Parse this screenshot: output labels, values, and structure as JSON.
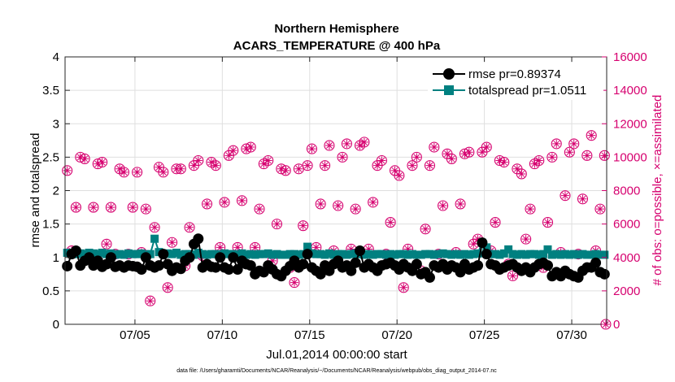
{
  "chart_data": {
    "type": "scatter",
    "title": "Northern Hemisphere",
    "subtitle": "ACARS_TEMPERATURE @ 400 hPa",
    "xlabel": "Jul.01,2014 00:00:00 start",
    "ylabel_left": "rmse and totalspread",
    "ylabel_right": "# of obs: o=possible, ×=assimilated",
    "footnote": "data file: /Users/gharamti/Documents/NCAR/Reanalysis/~/Documents/NCAR/Reanalysis/webpub/obs_diag_output_2014-07.nc",
    "xlim": [
      1.0,
      32.0
    ],
    "ylim_left": [
      0,
      4
    ],
    "ylim_right": [
      0,
      16000
    ],
    "x_ticks": [
      5,
      10,
      15,
      20,
      25,
      30
    ],
    "x_tick_labels": [
      "07/05",
      "07/10",
      "07/15",
      "07/20",
      "07/25",
      "07/30"
    ],
    "y_left_ticks": [
      "0",
      "0.5",
      "1",
      "1.5",
      "2",
      "2.5",
      "3",
      "3.5",
      "4"
    ],
    "y_right_ticks": [
      "0",
      "2000",
      "4000",
      "6000",
      "8000",
      "10000",
      "12000",
      "14000",
      "16000"
    ],
    "grid": true,
    "legend_position": "top-right",
    "colors": {
      "rmse": "#000000",
      "totalspread": "#008080",
      "obs": "#d6006f"
    },
    "series": [
      {
        "name": "rmse",
        "label": "rmse pr=0.89374",
        "axis": "left",
        "x": [
          1.125,
          1.375,
          1.625,
          1.875,
          2.125,
          2.375,
          2.625,
          2.875,
          3.125,
          3.375,
          3.625,
          3.875,
          4.125,
          4.375,
          4.625,
          4.875,
          5.125,
          5.375,
          5.625,
          5.875,
          6.125,
          6.375,
          6.625,
          6.875,
          7.125,
          7.375,
          7.625,
          7.875,
          8.125,
          8.375,
          8.625,
          8.875,
          9.125,
          9.375,
          9.625,
          9.875,
          10.125,
          10.375,
          10.625,
          10.875,
          11.125,
          11.375,
          11.625,
          11.875,
          12.125,
          12.375,
          12.625,
          12.875,
          13.125,
          13.375,
          13.625,
          13.875,
          14.125,
          14.375,
          14.625,
          14.875,
          15.125,
          15.375,
          15.625,
          15.875,
          16.125,
          16.375,
          16.625,
          16.875,
          17.125,
          17.375,
          17.625,
          17.875,
          18.125,
          18.375,
          18.625,
          18.875,
          19.125,
          19.375,
          19.625,
          19.875,
          20.125,
          20.375,
          20.625,
          20.875,
          21.125,
          21.375,
          21.625,
          21.875,
          22.125,
          22.375,
          22.625,
          22.875,
          23.125,
          23.375,
          23.625,
          23.875,
          24.125,
          24.375,
          24.625,
          24.875,
          25.125,
          25.375,
          25.625,
          25.875,
          26.125,
          26.375,
          26.625,
          26.875,
          27.125,
          27.375,
          27.625,
          27.875,
          28.125,
          28.375,
          28.625,
          28.875,
          29.125,
          29.375,
          29.625,
          29.875,
          30.125,
          30.375,
          30.625,
          30.875,
          31.125,
          31.375,
          31.625,
          31.875
        ],
        "values": [
          0.87,
          1.05,
          1.1,
          0.88,
          0.95,
          1.0,
          0.88,
          0.95,
          0.86,
          0.9,
          1.0,
          0.86,
          0.88,
          0.85,
          0.88,
          0.87,
          0.86,
          0.82,
          1.0,
          0.88,
          0.85,
          0.88,
          1.05,
          0.9,
          0.8,
          0.85,
          0.83,
          0.95,
          1.0,
          1.2,
          1.28,
          0.85,
          0.9,
          0.86,
          0.85,
          1.0,
          0.85,
          0.82,
          1.0,
          0.82,
          0.95,
          0.9,
          0.88,
          0.75,
          0.8,
          0.78,
          0.88,
          0.82,
          0.75,
          0.72,
          0.8,
          0.87,
          0.95,
          0.85,
          0.9,
          1.05,
          0.85,
          0.8,
          0.75,
          0.88,
          0.8,
          0.9,
          0.95,
          0.85,
          0.88,
          0.8,
          0.92,
          1.1,
          0.85,
          0.9,
          0.85,
          0.8,
          0.88,
          0.9,
          0.92,
          0.88,
          0.82,
          0.9,
          0.85,
          0.8,
          0.9,
          0.75,
          0.78,
          0.7,
          0.88,
          0.85,
          0.9,
          0.82,
          0.88,
          0.85,
          0.78,
          0.9,
          0.82,
          0.85,
          0.88,
          1.22,
          1.05,
          0.9,
          0.88,
          0.82,
          0.85,
          0.88,
          0.9,
          0.85,
          0.8,
          0.85,
          0.78,
          0.85,
          0.9,
          0.92,
          0.88,
          0.72,
          0.78,
          0.72,
          0.8,
          0.75,
          0.72,
          0.7,
          0.8,
          0.85,
          0.85,
          0.92,
          0.78,
          0.75
        ]
      },
      {
        "name": "totalspread",
        "label": "totalspread pr=1.0511",
        "axis": "left",
        "x": [
          1.125,
          1.375,
          1.625,
          1.875,
          2.125,
          2.375,
          2.625,
          2.875,
          3.125,
          3.375,
          3.625,
          3.875,
          4.125,
          4.375,
          4.625,
          4.875,
          5.125,
          5.375,
          5.625,
          5.875,
          6.125,
          6.375,
          6.625,
          6.875,
          7.125,
          7.375,
          7.625,
          7.875,
          8.125,
          8.375,
          8.625,
          8.875,
          9.125,
          9.375,
          9.625,
          9.875,
          10.125,
          10.375,
          10.625,
          10.875,
          11.125,
          11.375,
          11.625,
          11.875,
          12.125,
          12.375,
          12.625,
          12.875,
          13.125,
          13.375,
          13.625,
          13.875,
          14.125,
          14.375,
          14.625,
          14.875,
          15.125,
          15.375,
          15.625,
          15.875,
          16.125,
          16.375,
          16.625,
          16.875,
          17.125,
          17.375,
          17.625,
          17.875,
          18.125,
          18.375,
          18.625,
          18.875,
          19.125,
          19.375,
          19.625,
          19.875,
          20.125,
          20.375,
          20.625,
          20.875,
          21.125,
          21.375,
          21.625,
          21.875,
          22.125,
          22.375,
          22.625,
          22.875,
          23.125,
          23.375,
          23.625,
          23.875,
          24.125,
          24.375,
          24.625,
          24.875,
          25.125,
          25.375,
          25.625,
          25.875,
          26.125,
          26.375,
          26.625,
          26.875,
          27.125,
          27.375,
          27.625,
          27.875,
          28.125,
          28.375,
          28.625,
          28.875,
          29.125,
          29.375,
          29.625,
          29.875,
          30.125,
          30.375,
          30.625,
          30.875,
          31.125,
          31.375,
          31.625,
          31.875
        ],
        "values": [
          1.07,
          1.05,
          1.05,
          1.06,
          1.05,
          1.07,
          1.06,
          1.05,
          1.07,
          1.05,
          1.06,
          1.04,
          1.05,
          1.04,
          1.06,
          1.05,
          1.05,
          1.06,
          1.04,
          1.05,
          1.28,
          1.08,
          1.05,
          1.06,
          1.05,
          1.07,
          1.04,
          1.05,
          1.05,
          1.04,
          1.07,
          1.05,
          1.04,
          1.05,
          1.05,
          1.04,
          1.06,
          1.05,
          1.05,
          1.04,
          1.06,
          1.04,
          1.05,
          1.04,
          1.05,
          1.05,
          1.06,
          1.04,
          1.05,
          1.04,
          1.04,
          1.05,
          1.05,
          1.04,
          1.05,
          1.16,
          1.06,
          1.05,
          1.05,
          1.04,
          1.06,
          1.04,
          1.05,
          1.05,
          1.04,
          1.05,
          1.06,
          1.05,
          1.04,
          1.05,
          1.04,
          1.05,
          1.05,
          1.04,
          1.05,
          1.04,
          1.05,
          1.05,
          1.04,
          1.05,
          1.04,
          1.04,
          1.05,
          1.05,
          1.04,
          1.05,
          1.06,
          1.05,
          1.04,
          1.05,
          1.04,
          1.05,
          1.04,
          1.05,
          1.06,
          1.22,
          1.15,
          1.05,
          1.05,
          1.04,
          1.06,
          1.12,
          1.05,
          1.04,
          1.05,
          1.04,
          1.05,
          1.05,
          1.04,
          1.05,
          1.12,
          1.04,
          1.05,
          1.04,
          1.05,
          1.04,
          1.05,
          1.04,
          1.05,
          1.04,
          1.04,
          1.05,
          1.04,
          1.04
        ]
      },
      {
        "name": "obs_possible",
        "label": "# of obs possible",
        "axis": "right",
        "x": [
          1.125,
          1.375,
          1.625,
          1.875,
          2.125,
          2.375,
          2.625,
          2.875,
          3.125,
          3.375,
          3.625,
          3.875,
          4.125,
          4.375,
          4.625,
          4.875,
          5.125,
          5.375,
          5.625,
          5.875,
          6.125,
          6.375,
          6.625,
          6.875,
          7.125,
          7.375,
          7.625,
          7.875,
          8.125,
          8.375,
          8.625,
          8.875,
          9.125,
          9.375,
          9.625,
          9.875,
          10.125,
          10.375,
          10.625,
          10.875,
          11.125,
          11.375,
          11.625,
          11.875,
          12.125,
          12.375,
          12.625,
          12.875,
          13.125,
          13.375,
          13.625,
          13.875,
          14.125,
          14.375,
          14.625,
          14.875,
          15.125,
          15.375,
          15.625,
          15.875,
          16.125,
          16.375,
          16.625,
          16.875,
          17.125,
          17.375,
          17.625,
          17.875,
          18.125,
          18.375,
          18.625,
          18.875,
          19.125,
          19.375,
          19.625,
          19.875,
          20.125,
          20.375,
          20.625,
          20.875,
          21.125,
          21.375,
          21.625,
          21.875,
          22.125,
          22.375,
          22.625,
          22.875,
          23.125,
          23.375,
          23.625,
          23.875,
          24.125,
          24.375,
          24.625,
          24.875,
          25.125,
          25.375,
          25.625,
          25.875,
          26.125,
          26.375,
          26.625,
          26.875,
          27.125,
          27.375,
          27.625,
          27.875,
          28.125,
          28.375,
          28.625,
          28.875,
          29.125,
          29.375,
          29.625,
          29.875,
          30.125,
          30.375,
          30.625,
          30.875,
          31.125,
          31.375,
          31.625,
          31.875
        ],
        "values": [
          9200,
          4400,
          7000,
          10000,
          9900,
          4200,
          7000,
          9600,
          9700,
          4800,
          7000,
          4200,
          9300,
          9100,
          4200,
          7000,
          9100,
          4300,
          6900,
          1400,
          5800,
          9400,
          9100,
          2200,
          4900,
          9300,
          9300,
          3500,
          5800,
          9500,
          9800,
          4100,
          7200,
          9700,
          9500,
          4600,
          7300,
          10100,
          10400,
          4600,
          7400,
          10500,
          10600,
          4600,
          6900,
          9600,
          9800,
          3800,
          6000,
          9300,
          9200,
          3400,
          2500,
          9300,
          5900,
          9500,
          10500,
          4600,
          7200,
          9500,
          10700,
          4400,
          7100,
          10000,
          10800,
          4500,
          6900,
          10700,
          10900,
          4500,
          7300,
          9500,
          9800,
          4200,
          6100,
          9200,
          8900,
          2200,
          4500,
          9500,
          10000,
          3200,
          5700,
          9500,
          10600,
          4200,
          7100,
          10200,
          9900,
          4300,
          7200,
          10200,
          10300,
          4800,
          5100,
          10300,
          10600,
          4400,
          6100,
          9800,
          9700,
          3600,
          2900,
          9300,
          9000,
          5100,
          6900,
          9600,
          9800,
          3400,
          6100,
          10000,
          10800,
          4300,
          7700,
          10300,
          10800,
          4200,
          7500,
          10100,
          11300,
          4400,
          6900,
          10100
        ]
      },
      {
        "name": "obs_assimilated",
        "label": "# of obs assimilated",
        "axis": "right",
        "x": [
          1.125,
          1.375,
          1.625,
          1.875,
          2.125,
          2.375,
          2.625,
          2.875,
          3.125,
          3.375,
          3.625,
          3.875,
          4.125,
          4.375,
          4.625,
          4.875,
          5.125,
          5.375,
          5.625,
          5.875,
          6.125,
          6.375,
          6.625,
          6.875,
          7.125,
          7.375,
          7.625,
          7.875,
          8.125,
          8.375,
          8.625,
          8.875,
          9.125,
          9.375,
          9.625,
          9.875,
          10.125,
          10.375,
          10.625,
          10.875,
          11.125,
          11.375,
          11.625,
          11.875,
          12.125,
          12.375,
          12.625,
          12.875,
          13.125,
          13.375,
          13.625,
          13.875,
          14.125,
          14.375,
          14.625,
          14.875,
          15.125,
          15.375,
          15.625,
          15.875,
          16.125,
          16.375,
          16.625,
          16.875,
          17.125,
          17.375,
          17.625,
          17.875,
          18.125,
          18.375,
          18.625,
          18.875,
          19.125,
          19.375,
          19.625,
          19.875,
          20.125,
          20.375,
          20.625,
          20.875,
          21.125,
          21.375,
          21.625,
          21.875,
          22.125,
          22.375,
          22.625,
          22.875,
          23.125,
          23.375,
          23.625,
          23.875,
          24.125,
          24.375,
          24.625,
          24.875,
          25.125,
          25.375,
          25.625,
          25.875,
          26.125,
          26.375,
          26.625,
          26.875,
          27.125,
          27.375,
          27.625,
          27.875,
          28.125,
          28.375,
          28.625,
          28.875,
          29.125,
          29.375,
          29.625,
          29.875,
          30.125,
          30.375,
          30.625,
          30.875,
          31.125,
          31.375,
          31.625,
          31.875
        ],
        "values": [
          9200,
          4400,
          7000,
          10000,
          9900,
          4200,
          7000,
          9600,
          9700,
          4800,
          7000,
          4200,
          9300,
          9100,
          4200,
          7000,
          9100,
          4300,
          6900,
          1400,
          5800,
          9400,
          9100,
          2200,
          4900,
          9300,
          9300,
          3500,
          5800,
          9500,
          9800,
          4100,
          7200,
          9700,
          9500,
          4600,
          7300,
          10100,
          10400,
          4600,
          7400,
          10500,
          10600,
          4600,
          6900,
          9600,
          9800,
          3800,
          6000,
          9300,
          9200,
          3400,
          2500,
          9300,
          5900,
          9500,
          10500,
          4600,
          7200,
          9500,
          10700,
          4400,
          7100,
          10000,
          10800,
          4500,
          6900,
          10700,
          10900,
          4500,
          7300,
          9500,
          9800,
          4200,
          6100,
          9200,
          8900,
          2200,
          4500,
          9500,
          10000,
          3200,
          5700,
          9500,
          10600,
          4200,
          7100,
          10200,
          9900,
          4300,
          7200,
          10200,
          10300,
          4800,
          5100,
          10300,
          10600,
          4400,
          6100,
          9800,
          9700,
          3600,
          2900,
          9300,
          9000,
          5100,
          6900,
          9600,
          9800,
          3400,
          6100,
          10000,
          10800,
          4300,
          7700,
          10300,
          10800,
          4200,
          7500,
          10100,
          11300,
          4400,
          6900,
          10100
        ]
      },
      {
        "name": "obs_edge_zero",
        "label": "",
        "axis": "right",
        "x": [
          31.95
        ],
        "values": [
          0
        ]
      }
    ]
  }
}
